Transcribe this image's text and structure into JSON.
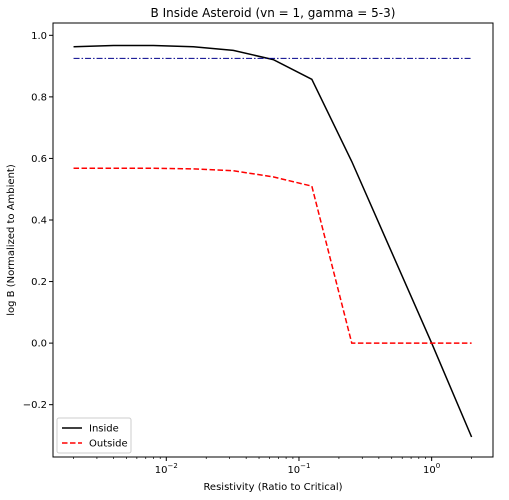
{
  "chart_data": {
    "type": "line",
    "title": "B Inside Asteroid (vn = 1, gamma = 5-3)",
    "xlabel": "Resistivity (Ratio to Critical)",
    "ylabel": "log B (Normalized to Ambient)",
    "xscale": "log",
    "xlim": [
      0.0014,
      2.9
    ],
    "ylim": [
      -0.37,
      1.04
    ],
    "x_ticks": [
      {
        "value": 0.01,
        "base": "10",
        "exp": "−2"
      },
      {
        "value": 0.1,
        "base": "10",
        "exp": "−1"
      },
      {
        "value": 1,
        "base": "10",
        "exp": "0"
      }
    ],
    "y_ticks": [
      {
        "value": -0.2,
        "label": "−0.2"
      },
      {
        "value": 0.0,
        "label": "0.0"
      },
      {
        "value": 0.2,
        "label": "0.2"
      },
      {
        "value": 0.4,
        "label": "0.4"
      },
      {
        "value": 0.6,
        "label": "0.6"
      },
      {
        "value": 0.8,
        "label": "0.8"
      },
      {
        "value": 1.0,
        "label": "1.0"
      }
    ],
    "series": [
      {
        "name": "Inside",
        "color": "#000000",
        "dash": "solid",
        "x": [
          0.002,
          0.004,
          0.008,
          0.016,
          0.032,
          0.064,
          0.125,
          0.25,
          0.5,
          1.0,
          2.0
        ],
        "y": [
          0.963,
          0.967,
          0.967,
          0.963,
          0.951,
          0.921,
          0.857,
          0.59,
          0.295,
          0.0,
          -0.305
        ]
      },
      {
        "name": "Outside",
        "color": "#ff0000",
        "dash": "dashed",
        "x": [
          0.002,
          0.004,
          0.008,
          0.016,
          0.032,
          0.064,
          0.125,
          0.25,
          0.5,
          1.0,
          2.0
        ],
        "y": [
          0.568,
          0.568,
          0.568,
          0.566,
          0.56,
          0.54,
          0.51,
          0.0,
          0.0,
          0.0,
          0.0
        ]
      },
      {
        "color": "#00008b",
        "dash": "dashdot",
        "x": [
          0.002,
          2.0
        ],
        "y": [
          0.925,
          0.925
        ]
      }
    ],
    "legend": {
      "position": "lower-left",
      "entries": [
        "Inside",
        "Outside"
      ]
    }
  }
}
